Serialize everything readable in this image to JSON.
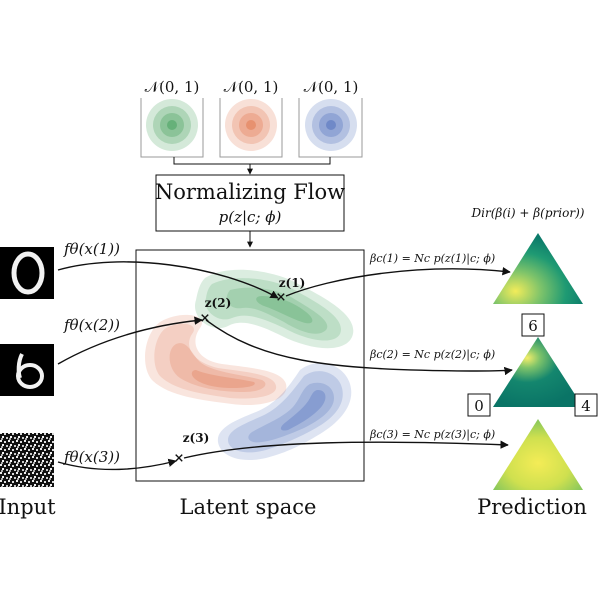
{
  "priors": [
    {
      "label": "𝒩(0, 1)",
      "color": "#3a9c54"
    },
    {
      "label": "𝒩(0, 1)",
      "color": "#e07048"
    },
    {
      "label": "𝒩(0, 1)",
      "color": "#4668b8"
    }
  ],
  "flow": {
    "title": "Normalizing Flow",
    "formula": "p(z|c; ϕ)"
  },
  "inputs": [
    {
      "encoder": "fθ(x(1))",
      "digit": "0"
    },
    {
      "encoder": "fθ(x(2))",
      "digit": "6"
    },
    {
      "encoder": "fθ(x(3))",
      "digit": "noise"
    }
  ],
  "latent": {
    "points": [
      "z(1)",
      "z(2)",
      "z(3)"
    ]
  },
  "betas": [
    "βc(1) = Nc p(z(1)|c; ϕ)",
    "βc(2) = Nc p(z(2)|c; ϕ)",
    "βc(3) = Nc p(z(3)|c; ϕ)"
  ],
  "dirichlet": "Dir(β(i) + β(prior))",
  "classes": {
    "top": "6",
    "left": "0",
    "right": "4"
  },
  "footer": {
    "input": "Input",
    "latent": "Latent space",
    "prediction": "Prediction"
  }
}
